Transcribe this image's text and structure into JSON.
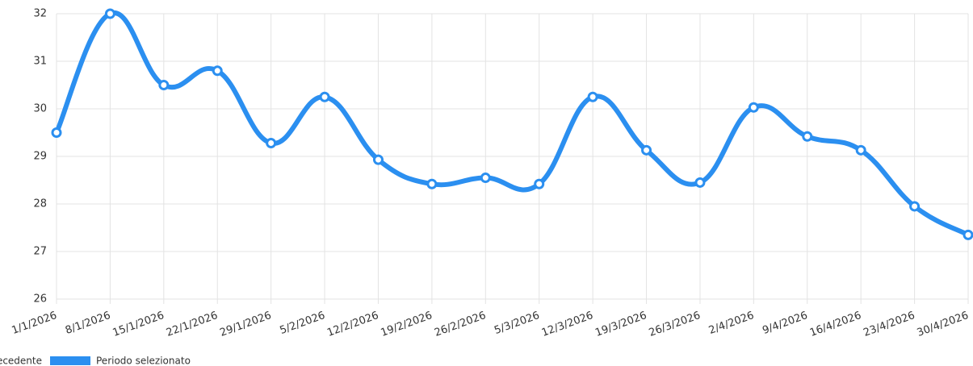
{
  "chart_data": {
    "type": "line",
    "categories": [
      "1/1/2026",
      "8/1/2026",
      "15/1/2026",
      "22/1/2026",
      "29/1/2026",
      "5/2/2026",
      "12/2/2026",
      "19/2/2026",
      "26/2/2026",
      "5/3/2026",
      "12/3/2026",
      "19/3/2026",
      "26/3/2026",
      "2/4/2026",
      "9/4/2026",
      "16/4/2026",
      "23/4/2026",
      "30/4/2026"
    ],
    "series": [
      {
        "name": "Periodo precedente",
        "color": "#a9cff5",
        "values": [
          null,
          null,
          null,
          null,
          null,
          null,
          null,
          null,
          null,
          null,
          null,
          null,
          null,
          null,
          null,
          null,
          null,
          null
        ]
      },
      {
        "name": "Periodo selezionato",
        "color": "#2b8ff0",
        "values": [
          29.5,
          32.0,
          30.5,
          30.8,
          29.28,
          30.25,
          28.93,
          28.42,
          28.55,
          28.42,
          30.25,
          29.13,
          28.45,
          30.03,
          29.42,
          29.13,
          27.95,
          27.35
        ]
      }
    ],
    "ylim": [
      26,
      32
    ],
    "yticks": [
      26,
      27,
      28,
      29,
      30,
      31,
      32
    ],
    "grid": true
  }
}
